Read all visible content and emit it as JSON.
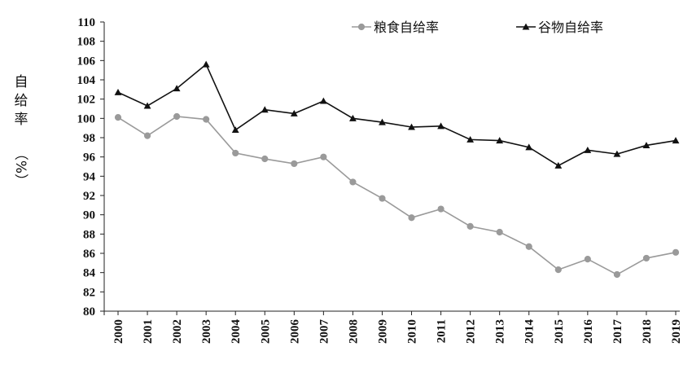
{
  "chart_data": {
    "type": "line",
    "categories": [
      "2000",
      "2001",
      "2002",
      "2003",
      "2004",
      "2005",
      "2006",
      "2007",
      "2008",
      "2009",
      "2010",
      "2011",
      "2012",
      "2013",
      "2014",
      "2015",
      "2016",
      "2017",
      "2018",
      "2019"
    ],
    "ylabel_lines": [
      "自",
      "给",
      "率",
      "（%）"
    ],
    "ylim": [
      80,
      110
    ],
    "ytick_step": 2,
    "yticks": [
      "80",
      "82",
      "84",
      "86",
      "88",
      "90",
      "92",
      "94",
      "96",
      "98",
      "100",
      "102",
      "104",
      "106",
      "108",
      "110"
    ],
    "grid": false,
    "legend_position": "top-right",
    "series": [
      {
        "name": "粮食自给率",
        "marker": "circle",
        "color": "#9a9a9a",
        "values": [
          100.1,
          98.2,
          100.2,
          99.9,
          96.4,
          95.8,
          95.3,
          96.0,
          93.4,
          91.7,
          89.7,
          90.6,
          88.8,
          88.2,
          86.7,
          84.3,
          85.4,
          83.8,
          85.5,
          86.1
        ]
      },
      {
        "name": "谷物自给率",
        "marker": "triangle",
        "color": "#111111",
        "values": [
          102.7,
          101.3,
          103.1,
          105.6,
          98.8,
          100.9,
          100.5,
          101.8,
          100.0,
          99.6,
          99.1,
          99.2,
          97.8,
          97.7,
          97.0,
          95.1,
          96.7,
          96.3,
          97.2,
          97.7
        ]
      }
    ]
  }
}
